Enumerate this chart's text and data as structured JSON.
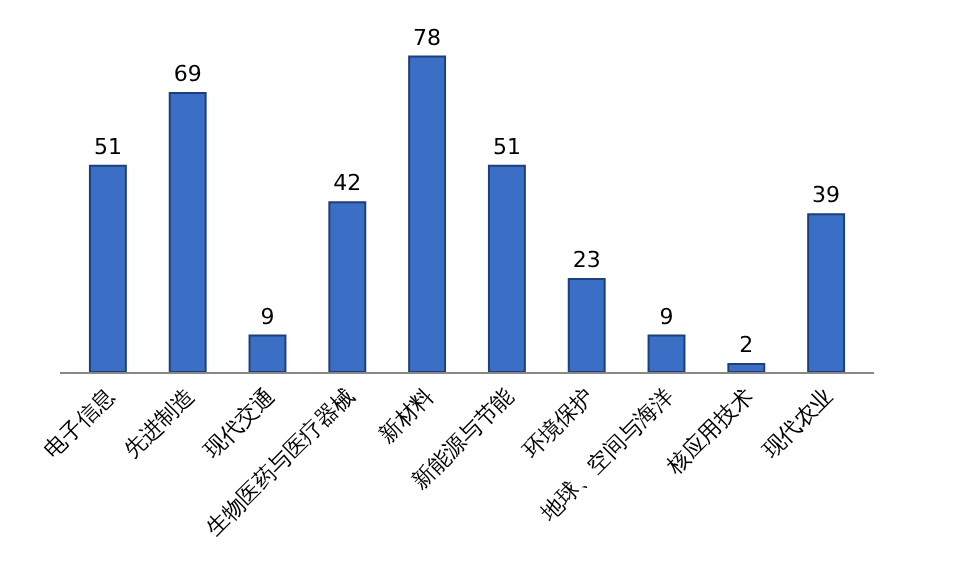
{
  "chart_data": {
    "type": "bar",
    "categories": [
      "电子信息",
      "先进制造",
      "现代交通",
      "生物医药与医疗器械",
      "新材料",
      "新能源与节能",
      "环境保护",
      "地球、空间与海洋",
      "核应用技术",
      "现代农业"
    ],
    "values": [
      51,
      69,
      9,
      42,
      78,
      51,
      23,
      9,
      2,
      39
    ],
    "color": "#3b6fc6",
    "data_labels": true
  }
}
